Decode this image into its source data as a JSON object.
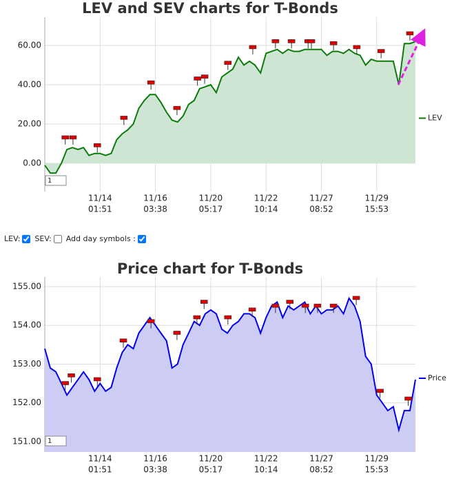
{
  "chart_data": [
    {
      "type": "line",
      "title": "LEV and SEV charts for T-Bonds",
      "series": [
        {
          "name": "LEV",
          "color": "#0a7a0a",
          "fill": "#cfe5d3",
          "values": [
            -1,
            -5,
            -5,
            0,
            7,
            8,
            7,
            8,
            4,
            5,
            5,
            4,
            5,
            12,
            15,
            17,
            20,
            28,
            32,
            35,
            35,
            31,
            26,
            22,
            21,
            24,
            30,
            32,
            38,
            39,
            40,
            36,
            44,
            46,
            48,
            54,
            50,
            52,
            50,
            46,
            56,
            57,
            58,
            56,
            58,
            57,
            57,
            58,
            58,
            58,
            58,
            55,
            57,
            57,
            56,
            58,
            56,
            55,
            50,
            53,
            52,
            52,
            52,
            52,
            40,
            61,
            61,
            62
          ]
        }
      ],
      "day_symbols": {
        "color": "#dd0000",
        "x": [
          3.7,
          5.1,
          9.5,
          14.3,
          19.2,
          23.9,
          27.6,
          28.9,
          33.1,
          37.6,
          41.7,
          44.6,
          47.6,
          48.2,
          52.2,
          56.4,
          60.8,
          66.0
        ],
        "values": [
          13,
          13,
          9,
          23,
          41,
          28,
          43,
          44,
          51,
          59,
          62,
          62,
          62,
          62,
          61,
          59,
          57,
          66
        ]
      },
      "xlim": [
        0,
        67
      ],
      "xticks": [
        {
          "value": 10,
          "label": "11/14",
          "time": "01:51"
        },
        {
          "value": 20,
          "label": "11/16",
          "time": "03:38"
        },
        {
          "value": 30,
          "label": "11/20",
          "time": "05:17"
        },
        {
          "value": 40,
          "label": "11/22",
          "time": "10:14"
        },
        {
          "value": 50,
          "label": "11/27",
          "time": "08:52"
        },
        {
          "value": 60,
          "label": "11/29",
          "time": "15:53"
        }
      ],
      "ylim": [
        -14.4,
        74.4
      ],
      "yticks": [
        {
          "value": 0,
          "label": "0.00"
        },
        {
          "value": 20,
          "label": "20.00"
        },
        {
          "value": 40,
          "label": "40.00"
        },
        {
          "value": 60,
          "label": "60.00"
        }
      ],
      "grid": true,
      "legend": "right",
      "range_box": "1"
    },
    {
      "type": "line",
      "title": "Price chart for T-Bonds",
      "series": [
        {
          "name": "Price",
          "color": "#0000ee",
          "fill": "#ccccf5",
          "values": [
            153.4,
            152.9,
            152.8,
            152.5,
            152.2,
            152.4,
            152.6,
            152.8,
            152.6,
            152.3,
            152.5,
            152.3,
            152.4,
            152.9,
            153.3,
            153.5,
            153.4,
            153.8,
            154.0,
            154.2,
            154.0,
            153.8,
            153.6,
            152.9,
            153.0,
            153.5,
            153.8,
            154.1,
            154.0,
            154.3,
            154.4,
            154.3,
            153.9,
            153.8,
            154.0,
            154.1,
            154.3,
            154.3,
            154.2,
            153.8,
            154.2,
            154.5,
            154.6,
            154.2,
            154.5,
            154.4,
            154.5,
            154.6,
            154.3,
            154.5,
            154.3,
            154.4,
            154.4,
            154.5,
            154.3,
            154.7,
            154.5,
            154.1,
            153.2,
            153.0,
            152.2,
            152.0,
            151.8,
            151.9,
            151.3,
            151.8,
            151.8,
            152.6
          ]
        }
      ],
      "day_symbols": {
        "color": "#dd0000",
        "x": [
          3.7,
          4.8,
          9.5,
          14.2,
          19.2,
          23.9,
          27.5,
          28.8,
          33.1,
          37.5,
          41.7,
          44.3,
          47.1,
          49.3,
          52.2,
          56.3,
          60.6,
          65.7
        ],
        "values": [
          152.5,
          152.7,
          152.6,
          153.6,
          154.1,
          153.8,
          154.2,
          154.6,
          154.2,
          154.4,
          154.5,
          154.6,
          154.5,
          154.5,
          154.5,
          154.7,
          152.3,
          152.1
        ]
      },
      "xlim": [
        0,
        67
      ],
      "xticks": [
        {
          "value": 10,
          "label": "11/14",
          "time": "01:51"
        },
        {
          "value": 20,
          "label": "11/16",
          "time": "03:38"
        },
        {
          "value": 30,
          "label": "11/20",
          "time": "05:17"
        },
        {
          "value": 40,
          "label": "11/22",
          "time": "10:14"
        },
        {
          "value": 50,
          "label": "11/27",
          "time": "08:52"
        },
        {
          "value": 60,
          "label": "11/29",
          "time": "15:53"
        }
      ],
      "ylim": [
        150.73,
        155.25
      ],
      "yticks": [
        {
          "value": 151,
          "label": "151.00"
        },
        {
          "value": 152,
          "label": "152.00"
        },
        {
          "value": 153,
          "label": "153.00"
        },
        {
          "value": 154,
          "label": "154.00"
        },
        {
          "value": 155,
          "label": "155.00"
        }
      ],
      "grid": true,
      "legend": "right",
      "range_box": "1"
    }
  ],
  "controls": {
    "lev_label": "LEV:",
    "lev_checked": true,
    "sev_label": "SEV:",
    "sev_checked": false,
    "day_label": "Add day symbols :",
    "day_checked": true
  }
}
